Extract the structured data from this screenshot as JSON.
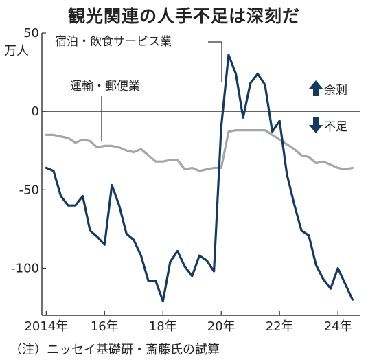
{
  "title": "観光関連の人手不足は深刻だ",
  "note": "（注）ニッセイ基礎研・斎藤氏の試算",
  "y_unit": "万人",
  "surplus_label": "余剰",
  "shortage_label": "不足",
  "colors": {
    "accommodation": "#143a63",
    "transport": "#a6a6a6",
    "axis": "#333333"
  },
  "chart_data": {
    "type": "line",
    "title": "観光関連の人手不足は深刻だ",
    "ylabel": "万人",
    "ylim": [
      -130,
      50
    ],
    "xlim": [
      2013.85,
      2024.75
    ],
    "yticks": [
      {
        "value": 50,
        "label": "50"
      },
      {
        "value": 0,
        "label": "0"
      },
      {
        "value": -50,
        "label": "-50"
      },
      {
        "value": -100,
        "label": "-100"
      }
    ],
    "xticks": [
      {
        "value": 2014,
        "label": "2014年"
      },
      {
        "value": 2016,
        "label": "16年"
      },
      {
        "value": 2018,
        "label": "18年"
      },
      {
        "value": 2020,
        "label": "20年"
      },
      {
        "value": 2022,
        "label": "22年"
      },
      {
        "value": 2024,
        "label": "24年"
      }
    ],
    "series": [
      {
        "name": "宿泊・飲食サービス業",
        "x": [
          2014.0,
          2014.25,
          2014.5,
          2014.75,
          2015.0,
          2015.25,
          2015.5,
          2015.75,
          2016.0,
          2016.25,
          2016.5,
          2016.75,
          2017.0,
          2017.25,
          2017.5,
          2017.75,
          2018.0,
          2018.25,
          2018.5,
          2018.75,
          2019.0,
          2019.25,
          2019.5,
          2019.75,
          2020.0,
          2020.25,
          2020.5,
          2020.75,
          2021.0,
          2021.25,
          2021.5,
          2021.75,
          2022.0,
          2022.25,
          2022.5,
          2022.75,
          2023.0,
          2023.25,
          2023.5,
          2023.75,
          2024.0,
          2024.25,
          2024.5
        ],
        "values": [
          -36,
          -38,
          -54,
          -60,
          -60,
          -54,
          -76,
          -80,
          -85,
          -47,
          -60,
          -78,
          -82,
          -92,
          -108,
          -108,
          -121,
          -96,
          -89,
          -99,
          -105,
          -92,
          -95,
          -102,
          -10,
          36,
          24,
          -4,
          18,
          24,
          17,
          -13,
          -6,
          -40,
          -59,
          -76,
          -79,
          -98,
          -107,
          -113,
          -100,
          -110,
          -120
        ]
      },
      {
        "name": "運輸・郵便業",
        "x": [
          2014.0,
          2014.25,
          2014.5,
          2014.75,
          2015.0,
          2015.25,
          2015.5,
          2015.75,
          2016.0,
          2016.25,
          2016.5,
          2016.75,
          2017.0,
          2017.25,
          2017.5,
          2017.75,
          2018.0,
          2018.25,
          2018.5,
          2018.75,
          2019.0,
          2019.25,
          2019.5,
          2019.75,
          2020.0,
          2020.25,
          2020.5,
          2020.75,
          2021.0,
          2021.25,
          2021.5,
          2021.75,
          2022.0,
          2022.25,
          2022.5,
          2022.75,
          2023.0,
          2023.25,
          2023.5,
          2023.75,
          2024.0,
          2024.25,
          2024.5
        ],
        "values": [
          -15,
          -15,
          -16,
          -17,
          -20,
          -18,
          -19,
          -23,
          -22,
          -22,
          -23,
          -25,
          -26,
          -24,
          -28,
          -32,
          -32,
          -31,
          -31,
          -37,
          -36,
          -38,
          -37,
          -36,
          -36,
          -13,
          -12,
          -12,
          -12,
          -12,
          -12,
          -15,
          -18,
          -21,
          -24,
          -28,
          -29,
          -33,
          -32,
          -34,
          -36,
          -37,
          -36
        ]
      }
    ],
    "annotations": [
      "宿泊・飲食サービス業",
      "運輸・郵便業"
    ]
  }
}
